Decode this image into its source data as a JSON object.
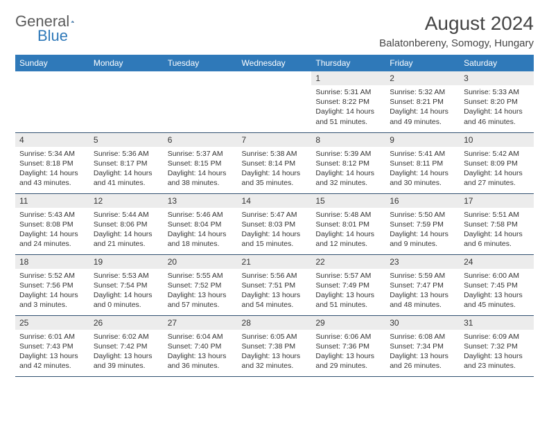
{
  "logo": {
    "word1": "General",
    "word2": "Blue"
  },
  "title": "August 2024",
  "subtitle": "Balatonbereny, Somogy, Hungary",
  "colors": {
    "header_bg": "#2f79b9",
    "header_text": "#ffffff",
    "daynum_bg": "#ececec",
    "border": "#2f4f6f",
    "logo_gray": "#5a5a5a",
    "logo_blue": "#2f79b9"
  },
  "day_headers": [
    "Sunday",
    "Monday",
    "Tuesday",
    "Wednesday",
    "Thursday",
    "Friday",
    "Saturday"
  ],
  "weeks": [
    [
      {
        "n": "",
        "lines": []
      },
      {
        "n": "",
        "lines": []
      },
      {
        "n": "",
        "lines": []
      },
      {
        "n": "",
        "lines": []
      },
      {
        "n": "1",
        "lines": [
          "Sunrise: 5:31 AM",
          "Sunset: 8:22 PM",
          "Daylight: 14 hours and 51 minutes."
        ]
      },
      {
        "n": "2",
        "lines": [
          "Sunrise: 5:32 AM",
          "Sunset: 8:21 PM",
          "Daylight: 14 hours and 49 minutes."
        ]
      },
      {
        "n": "3",
        "lines": [
          "Sunrise: 5:33 AM",
          "Sunset: 8:20 PM",
          "Daylight: 14 hours and 46 minutes."
        ]
      }
    ],
    [
      {
        "n": "4",
        "lines": [
          "Sunrise: 5:34 AM",
          "Sunset: 8:18 PM",
          "Daylight: 14 hours and 43 minutes."
        ]
      },
      {
        "n": "5",
        "lines": [
          "Sunrise: 5:36 AM",
          "Sunset: 8:17 PM",
          "Daylight: 14 hours and 41 minutes."
        ]
      },
      {
        "n": "6",
        "lines": [
          "Sunrise: 5:37 AM",
          "Sunset: 8:15 PM",
          "Daylight: 14 hours and 38 minutes."
        ]
      },
      {
        "n": "7",
        "lines": [
          "Sunrise: 5:38 AM",
          "Sunset: 8:14 PM",
          "Daylight: 14 hours and 35 minutes."
        ]
      },
      {
        "n": "8",
        "lines": [
          "Sunrise: 5:39 AM",
          "Sunset: 8:12 PM",
          "Daylight: 14 hours and 32 minutes."
        ]
      },
      {
        "n": "9",
        "lines": [
          "Sunrise: 5:41 AM",
          "Sunset: 8:11 PM",
          "Daylight: 14 hours and 30 minutes."
        ]
      },
      {
        "n": "10",
        "lines": [
          "Sunrise: 5:42 AM",
          "Sunset: 8:09 PM",
          "Daylight: 14 hours and 27 minutes."
        ]
      }
    ],
    [
      {
        "n": "11",
        "lines": [
          "Sunrise: 5:43 AM",
          "Sunset: 8:08 PM",
          "Daylight: 14 hours and 24 minutes."
        ]
      },
      {
        "n": "12",
        "lines": [
          "Sunrise: 5:44 AM",
          "Sunset: 8:06 PM",
          "Daylight: 14 hours and 21 minutes."
        ]
      },
      {
        "n": "13",
        "lines": [
          "Sunrise: 5:46 AM",
          "Sunset: 8:04 PM",
          "Daylight: 14 hours and 18 minutes."
        ]
      },
      {
        "n": "14",
        "lines": [
          "Sunrise: 5:47 AM",
          "Sunset: 8:03 PM",
          "Daylight: 14 hours and 15 minutes."
        ]
      },
      {
        "n": "15",
        "lines": [
          "Sunrise: 5:48 AM",
          "Sunset: 8:01 PM",
          "Daylight: 14 hours and 12 minutes."
        ]
      },
      {
        "n": "16",
        "lines": [
          "Sunrise: 5:50 AM",
          "Sunset: 7:59 PM",
          "Daylight: 14 hours and 9 minutes."
        ]
      },
      {
        "n": "17",
        "lines": [
          "Sunrise: 5:51 AM",
          "Sunset: 7:58 PM",
          "Daylight: 14 hours and 6 minutes."
        ]
      }
    ],
    [
      {
        "n": "18",
        "lines": [
          "Sunrise: 5:52 AM",
          "Sunset: 7:56 PM",
          "Daylight: 14 hours and 3 minutes."
        ]
      },
      {
        "n": "19",
        "lines": [
          "Sunrise: 5:53 AM",
          "Sunset: 7:54 PM",
          "Daylight: 14 hours and 0 minutes."
        ]
      },
      {
        "n": "20",
        "lines": [
          "Sunrise: 5:55 AM",
          "Sunset: 7:52 PM",
          "Daylight: 13 hours and 57 minutes."
        ]
      },
      {
        "n": "21",
        "lines": [
          "Sunrise: 5:56 AM",
          "Sunset: 7:51 PM",
          "Daylight: 13 hours and 54 minutes."
        ]
      },
      {
        "n": "22",
        "lines": [
          "Sunrise: 5:57 AM",
          "Sunset: 7:49 PM",
          "Daylight: 13 hours and 51 minutes."
        ]
      },
      {
        "n": "23",
        "lines": [
          "Sunrise: 5:59 AM",
          "Sunset: 7:47 PM",
          "Daylight: 13 hours and 48 minutes."
        ]
      },
      {
        "n": "24",
        "lines": [
          "Sunrise: 6:00 AM",
          "Sunset: 7:45 PM",
          "Daylight: 13 hours and 45 minutes."
        ]
      }
    ],
    [
      {
        "n": "25",
        "lines": [
          "Sunrise: 6:01 AM",
          "Sunset: 7:43 PM",
          "Daylight: 13 hours and 42 minutes."
        ]
      },
      {
        "n": "26",
        "lines": [
          "Sunrise: 6:02 AM",
          "Sunset: 7:42 PM",
          "Daylight: 13 hours and 39 minutes."
        ]
      },
      {
        "n": "27",
        "lines": [
          "Sunrise: 6:04 AM",
          "Sunset: 7:40 PM",
          "Daylight: 13 hours and 36 minutes."
        ]
      },
      {
        "n": "28",
        "lines": [
          "Sunrise: 6:05 AM",
          "Sunset: 7:38 PM",
          "Daylight: 13 hours and 32 minutes."
        ]
      },
      {
        "n": "29",
        "lines": [
          "Sunrise: 6:06 AM",
          "Sunset: 7:36 PM",
          "Daylight: 13 hours and 29 minutes."
        ]
      },
      {
        "n": "30",
        "lines": [
          "Sunrise: 6:08 AM",
          "Sunset: 7:34 PM",
          "Daylight: 13 hours and 26 minutes."
        ]
      },
      {
        "n": "31",
        "lines": [
          "Sunrise: 6:09 AM",
          "Sunset: 7:32 PM",
          "Daylight: 13 hours and 23 minutes."
        ]
      }
    ]
  ]
}
